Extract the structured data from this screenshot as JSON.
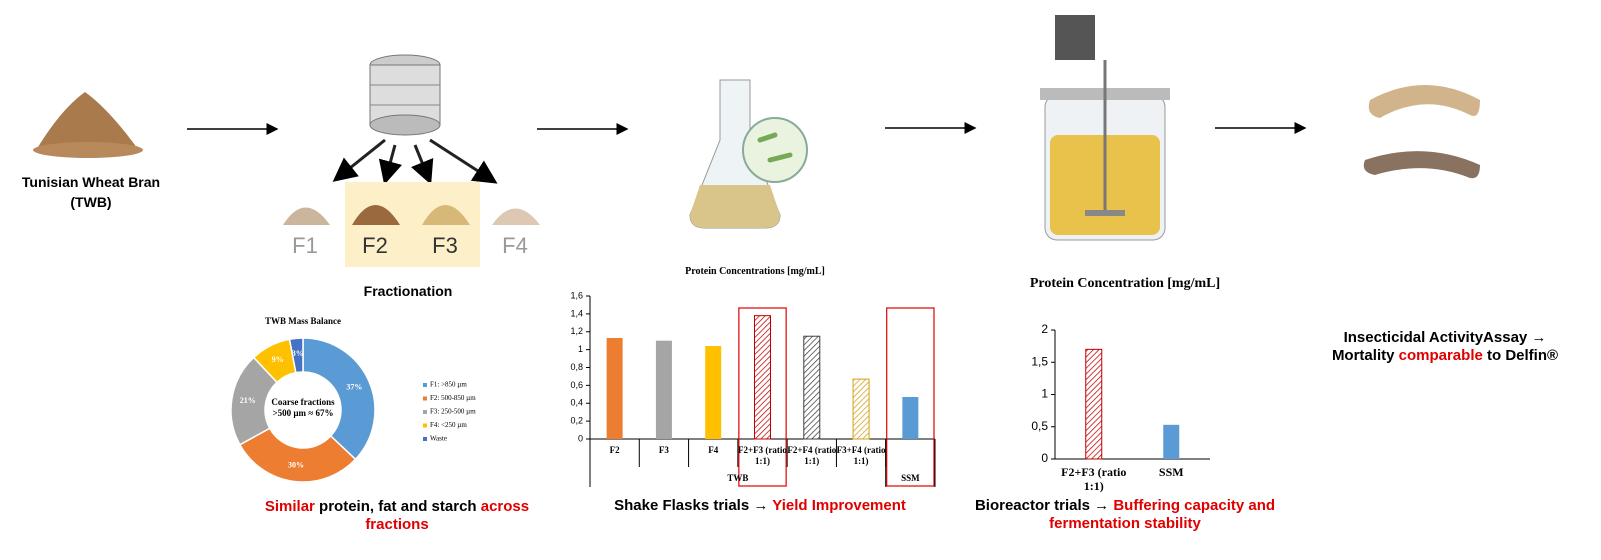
{
  "inputs": {
    "wheat_bran": [
      "Tunisian Wheat Bran",
      "(TWB)"
    ],
    "fractionation": "Fractionation",
    "fractions": [
      "F1",
      "F2",
      "F3",
      "F4"
    ]
  },
  "captions": [
    {
      "segments": [
        {
          "text": "Similar",
          "color": "#e00000"
        },
        {
          "text": " protein, fat and starch ",
          "color": "#000000"
        },
        {
          "text": "across fractions",
          "color": "#e00000"
        }
      ]
    },
    {
      "segments": [
        {
          "text": "Shake Flasks trials → ",
          "color": "#000000"
        },
        {
          "text": "Yield Improvement",
          "color": "#e00000"
        }
      ]
    },
    {
      "segments": [
        {
          "text": "Bioreactor trials → ",
          "color": "#000000"
        },
        {
          "text": "Buffering capacity and fermentation stability",
          "color": "#e00000"
        }
      ]
    },
    {
      "segments": [
        {
          "text": "Insecticidal ActivityAssay → Mortality ",
          "color": "#000000"
        },
        {
          "text": "comparable",
          "color": "#e00000"
        },
        {
          "text": " to Delfin®",
          "color": "#000000"
        }
      ]
    }
  ],
  "chart_data": [
    {
      "type": "pie",
      "title": "TWB Mass Balance",
      "annotation": "Coarse fractions >500 µm ≈ 67%",
      "categories": [
        "F1: >850 µm",
        "F2: 500-850 µm",
        "F3: 250-500 µm",
        "F4: <250 µm",
        "Waste"
      ],
      "values": [
        37,
        30,
        21,
        9,
        3
      ],
      "value_labels": [
        "37%",
        "30%",
        "21%",
        "9%",
        "3%"
      ],
      "colors": [
        "#5b9bd5",
        "#ed7d31",
        "#a5a5a5",
        "#ffc000",
        "#4472c4"
      ],
      "legend": "right"
    },
    {
      "type": "bar",
      "title": "Protein Concentrations [mg/mL]",
      "categories": [
        "F2",
        "F3",
        "F4",
        "F2+F3 (ratio 1:1)",
        "F2+F4 (ratio 1:1)",
        "F3+F4 (ratio 1:1)",
        null
      ],
      "groups": [
        "TWB",
        "TWB",
        "TWB",
        "TWB",
        "TWB",
        "TWB",
        "SSM"
      ],
      "values": [
        1.13,
        1.1,
        1.04,
        1.38,
        1.15,
        0.67,
        0.47
      ],
      "colors": [
        "#ed7d31",
        "#a5a5a5",
        "#ffc000",
        "#c00000",
        "#404040",
        "#d4a017",
        "#5b9bd5"
      ],
      "hatched": [
        false,
        false,
        false,
        true,
        true,
        true,
        false
      ],
      "highlight": [
        false,
        false,
        false,
        true,
        false,
        false,
        true
      ],
      "ylim": [
        0,
        1.6
      ],
      "yticks": [
        0,
        {
          "value": 0.2,
          "label": "0,2"
        },
        {
          "value": 0.4,
          "label": "0,4"
        },
        {
          "value": 0.6,
          "label": "0,6"
        },
        {
          "value": 0.8,
          "label": "0,8"
        },
        1,
        {
          "value": 1.2,
          "label": "1,2"
        },
        {
          "value": 1.4,
          "label": "1,4"
        },
        {
          "value": 1.6,
          "label": "1,6"
        }
      ]
    },
    {
      "type": "bar",
      "title": "Protein Concentration [mg/mL]",
      "categories": [
        "F2+F3 (ratio 1:1)",
        "SSM"
      ],
      "values": [
        1.7,
        0.53
      ],
      "colors": [
        "#c00000",
        "#5b9bd5"
      ],
      "hatched": [
        true,
        false
      ],
      "ylim": [
        0,
        2
      ],
      "yticks": [
        0,
        {
          "value": 0.5,
          "label": "0,5"
        },
        1,
        {
          "value": 1.5,
          "label": "1,5"
        },
        2
      ]
    }
  ]
}
